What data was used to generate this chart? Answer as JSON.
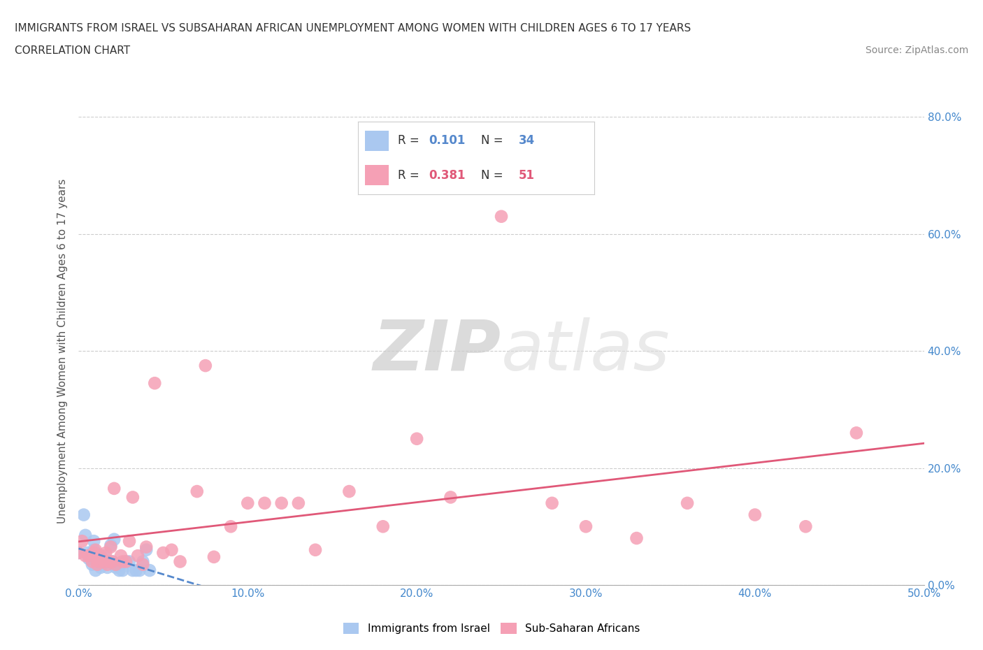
{
  "title": "IMMIGRANTS FROM ISRAEL VS SUBSAHARAN AFRICAN UNEMPLOYMENT AMONG WOMEN WITH CHILDREN AGES 6 TO 17 YEARS",
  "subtitle": "CORRELATION CHART",
  "source": "Source: ZipAtlas.com",
  "ylabel": "Unemployment Among Women with Children Ages 6 to 17 years",
  "xlim": [
    0.0,
    0.5
  ],
  "ylim": [
    0.0,
    0.8
  ],
  "xticks": [
    0.0,
    0.1,
    0.2,
    0.3,
    0.4,
    0.5
  ],
  "yticks": [
    0.0,
    0.2,
    0.4,
    0.6,
    0.8
  ],
  "xtick_labels": [
    "0.0%",
    "10.0%",
    "20.0%",
    "30.0%",
    "40.0%",
    "50.0%"
  ],
  "ytick_labels_right": [
    "0.0%",
    "20.0%",
    "40.0%",
    "60.0%",
    "80.0%"
  ],
  "legend_label1": "Immigrants from Israel",
  "legend_label2": "Sub-Saharan Africans",
  "R1": 0.101,
  "N1": 34,
  "R2": 0.381,
  "N2": 51,
  "color_israel": "#aac8f0",
  "color_subsaharan": "#f5a0b5",
  "color_israel_line": "#5588cc",
  "color_subsaharan_line": "#e05878",
  "background_color": "#ffffff",
  "watermark_zip": "ZIP",
  "watermark_atlas": "atlas",
  "israel_x": [
    0.0,
    0.003,
    0.004,
    0.005,
    0.006,
    0.007,
    0.008,
    0.009,
    0.009,
    0.01,
    0.01,
    0.011,
    0.012,
    0.013,
    0.014,
    0.015,
    0.016,
    0.017,
    0.018,
    0.019,
    0.02,
    0.021,
    0.022,
    0.024,
    0.025,
    0.026,
    0.028,
    0.03,
    0.032,
    0.034,
    0.036,
    0.038,
    0.04,
    0.042
  ],
  "israel_y": [
    0.055,
    0.12,
    0.085,
    0.055,
    0.045,
    0.05,
    0.035,
    0.075,
    0.06,
    0.055,
    0.025,
    0.045,
    0.05,
    0.03,
    0.045,
    0.05,
    0.04,
    0.03,
    0.04,
    0.068,
    0.04,
    0.078,
    0.03,
    0.025,
    0.035,
    0.025,
    0.04,
    0.04,
    0.025,
    0.025,
    0.025,
    0.04,
    0.06,
    0.025
  ],
  "subsaharan_x": [
    0.0,
    0.002,
    0.004,
    0.006,
    0.008,
    0.009,
    0.01,
    0.011,
    0.012,
    0.013,
    0.015,
    0.016,
    0.017,
    0.018,
    0.019,
    0.02,
    0.021,
    0.022,
    0.025,
    0.026,
    0.028,
    0.03,
    0.032,
    0.035,
    0.038,
    0.04,
    0.045,
    0.05,
    0.055,
    0.06,
    0.07,
    0.075,
    0.08,
    0.09,
    0.1,
    0.11,
    0.12,
    0.13,
    0.14,
    0.16,
    0.18,
    0.2,
    0.22,
    0.25,
    0.28,
    0.3,
    0.33,
    0.36,
    0.4,
    0.43,
    0.46
  ],
  "subsaharan_y": [
    0.055,
    0.075,
    0.05,
    0.05,
    0.04,
    0.055,
    0.06,
    0.035,
    0.04,
    0.05,
    0.04,
    0.055,
    0.035,
    0.04,
    0.065,
    0.04,
    0.165,
    0.035,
    0.05,
    0.04,
    0.04,
    0.075,
    0.15,
    0.05,
    0.035,
    0.065,
    0.345,
    0.055,
    0.06,
    0.04,
    0.16,
    0.375,
    0.048,
    0.1,
    0.14,
    0.14,
    0.14,
    0.14,
    0.06,
    0.16,
    0.1,
    0.25,
    0.15,
    0.63,
    0.14,
    0.1,
    0.08,
    0.14,
    0.12,
    0.1,
    0.26
  ]
}
